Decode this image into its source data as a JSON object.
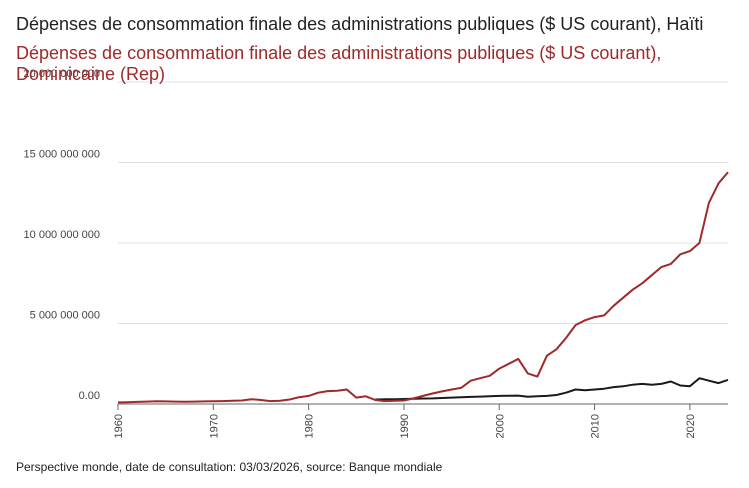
{
  "chart_data": {
    "type": "line",
    "title": "",
    "xlabel": "",
    "ylabel": "",
    "ylim": [
      0,
      20000000000
    ],
    "xlim": [
      1960,
      2024
    ],
    "yticks": [
      "0.00",
      "5 000 000 000",
      "10 000 000 000",
      "15 000 000 000",
      "20 000 000 000"
    ],
    "ytick_values": [
      0,
      5000000000,
      10000000000,
      15000000000,
      20000000000
    ],
    "xticks": [
      "1960",
      "1970",
      "1980",
      "1990",
      "2000",
      "2010",
      "2020"
    ],
    "xtick_values": [
      1960,
      1970,
      1980,
      1990,
      2000,
      2010,
      2020
    ],
    "series": [
      {
        "name": "Dépenses de consommation finale des administrations publiques ($ US courant), Haïti",
        "color": "#1a1a1a",
        "x": [
          1987,
          1988,
          1989,
          1990,
          1991,
          1992,
          1993,
          1994,
          1995,
          1996,
          1997,
          1998,
          1999,
          2000,
          2001,
          2002,
          2003,
          2004,
          2005,
          2006,
          2007,
          2008,
          2009,
          2010,
          2011,
          2012,
          2013,
          2014,
          2015,
          2016,
          2017,
          2018,
          2019,
          2020,
          2021,
          2022,
          2023,
          2024
        ],
        "values": [
          280000000,
          290000000,
          300000000,
          310000000,
          330000000,
          340000000,
          350000000,
          370000000,
          400000000,
          420000000,
          440000000,
          460000000,
          480000000,
          500000000,
          510000000,
          520000000,
          450000000,
          480000000,
          500000000,
          560000000,
          700000000,
          900000000,
          850000000,
          900000000,
          950000000,
          1050000000,
          1100000000,
          1200000000,
          1250000000,
          1200000000,
          1250000000,
          1400000000,
          1150000000,
          1100000000,
          1600000000,
          1450000000,
          1300000000,
          1500000000
        ]
      },
      {
        "name": "Dépenses de consommation finale des administrations publiques ($ US courant), Dominicaine (Rep)",
        "color": "#a0292a",
        "x": [
          1960,
          1961,
          1962,
          1963,
          1964,
          1965,
          1966,
          1967,
          1968,
          1969,
          1970,
          1971,
          1972,
          1973,
          1974,
          1975,
          1976,
          1977,
          1978,
          1979,
          1980,
          1981,
          1982,
          1983,
          1984,
          1985,
          1986,
          1987,
          1988,
          1989,
          1990,
          1991,
          1992,
          1993,
          1994,
          1995,
          1996,
          1997,
          1998,
          1999,
          2000,
          2001,
          2002,
          2003,
          2004,
          2005,
          2006,
          2007,
          2008,
          2009,
          2010,
          2011,
          2012,
          2013,
          2014,
          2015,
          2016,
          2017,
          2018,
          2019,
          2020,
          2021,
          2022,
          2023,
          2024
        ],
        "values": [
          100000000,
          110000000,
          130000000,
          150000000,
          170000000,
          160000000,
          150000000,
          140000000,
          150000000,
          160000000,
          170000000,
          180000000,
          200000000,
          220000000,
          300000000,
          250000000,
          180000000,
          200000000,
          280000000,
          420000000,
          500000000,
          700000000,
          800000000,
          820000000,
          900000000,
          400000000,
          480000000,
          250000000,
          180000000,
          200000000,
          220000000,
          350000000,
          500000000,
          650000000,
          780000000,
          900000000,
          1000000000,
          1450000000,
          1600000000,
          1750000000,
          2200000000,
          2500000000,
          2800000000,
          1900000000,
          1700000000,
          3000000000,
          3400000000,
          4100000000,
          4900000000,
          5200000000,
          5400000000,
          5500000000,
          6100000000,
          6600000000,
          7100000000,
          7500000000,
          8000000000,
          8500000000,
          8700000000,
          9300000000,
          9500000000,
          10000000000,
          12500000000,
          13700000000,
          14400000000
        ]
      }
    ]
  },
  "legend": {
    "haiti": "Dépenses de consommation finale des administrations publiques ($ US courant), Haïti",
    "dominicaine": "Dépenses de consommation finale des administrations publiques ($ US courant), Dominicaine (Rep)"
  },
  "footer": "Perspective monde, date de consultation: 03/03/2026, source: Banque mondiale"
}
